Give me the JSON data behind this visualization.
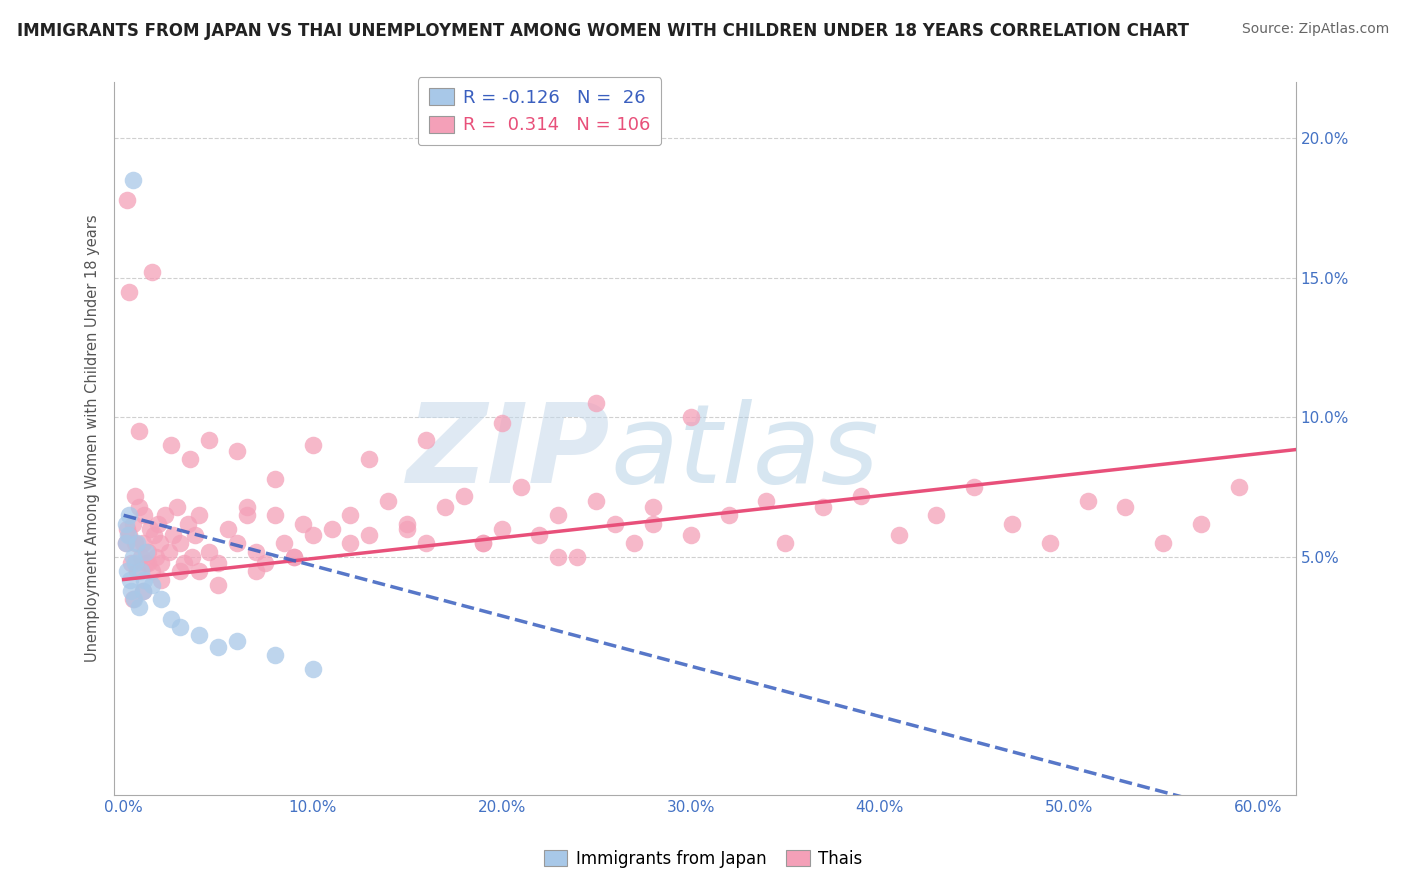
{
  "title": "IMMIGRANTS FROM JAPAN VS THAI UNEMPLOYMENT AMONG WOMEN WITH CHILDREN UNDER 18 YEARS CORRELATION CHART",
  "source": "Source: ZipAtlas.com",
  "xlabel_vals": [
    0,
    10,
    20,
    30,
    40,
    50,
    60
  ],
  "ylabel_vals": [
    5,
    10,
    15,
    20
  ],
  "ylabel_label": "Unemployment Among Women with Children Under 18 years",
  "xlim": [
    -0.5,
    62
  ],
  "ylim": [
    -3.5,
    22
  ],
  "japan_R": -0.126,
  "japan_N": 26,
  "thai_R": 0.314,
  "thai_N": 106,
  "japan_color": "#a8c8e8",
  "thai_color": "#f4a0b8",
  "japan_line_color": "#3a5fbf",
  "thai_line_color": "#e8507a",
  "japan_line_start_y": 6.5,
  "japan_line_slope": -0.18,
  "thai_line_start_y": 4.2,
  "thai_line_slope": 0.075,
  "japan_scatter_x": [
    0.1,
    0.15,
    0.2,
    0.25,
    0.3,
    0.35,
    0.4,
    0.5,
    0.55,
    0.6,
    0.7,
    0.8,
    0.9,
    1.0,
    1.1,
    1.2,
    1.5,
    2.0,
    2.5,
    3.0,
    4.0,
    5.0,
    6.0,
    8.0,
    10.0,
    0.5
  ],
  "japan_scatter_y": [
    5.5,
    6.2,
    4.5,
    5.8,
    6.5,
    4.2,
    3.8,
    5.0,
    3.5,
    4.8,
    5.5,
    3.2,
    4.5,
    3.8,
    4.2,
    5.2,
    4.0,
    3.5,
    2.8,
    2.5,
    2.2,
    1.8,
    2.0,
    1.5,
    1.0,
    18.5
  ],
  "thai_scatter_x": [
    0.1,
    0.2,
    0.3,
    0.4,
    0.5,
    0.6,
    0.7,
    0.8,
    0.9,
    1.0,
    1.1,
    1.2,
    1.3,
    1.4,
    1.5,
    1.6,
    1.7,
    1.8,
    1.9,
    2.0,
    2.2,
    2.4,
    2.6,
    2.8,
    3.0,
    3.2,
    3.4,
    3.6,
    3.8,
    4.0,
    4.5,
    5.0,
    5.5,
    6.0,
    6.5,
    7.0,
    7.5,
    8.0,
    8.5,
    9.0,
    9.5,
    10.0,
    11.0,
    12.0,
    13.0,
    14.0,
    15.0,
    16.0,
    17.0,
    18.0,
    19.0,
    20.0,
    21.0,
    22.0,
    23.0,
    24.0,
    25.0,
    26.0,
    27.0,
    28.0,
    30.0,
    32.0,
    34.0,
    35.0,
    37.0,
    39.0,
    41.0,
    43.0,
    45.0,
    47.0,
    49.0,
    51.0,
    53.0,
    55.0,
    57.0,
    59.0,
    0.3,
    0.8,
    1.5,
    2.5,
    3.5,
    4.5,
    6.0,
    8.0,
    10.0,
    13.0,
    16.0,
    20.0,
    25.0,
    30.0,
    0.5,
    1.0,
    2.0,
    3.0,
    5.0,
    7.0,
    9.0,
    12.0,
    15.0,
    19.0,
    23.0,
    28.0,
    0.2,
    0.6,
    1.3,
    4.0,
    6.5
  ],
  "thai_scatter_y": [
    5.5,
    6.0,
    5.8,
    4.8,
    6.2,
    5.5,
    4.5,
    6.8,
    5.0,
    5.5,
    6.5,
    4.8,
    5.2,
    6.0,
    4.5,
    5.8,
    5.0,
    6.2,
    5.5,
    4.8,
    6.5,
    5.2,
    5.8,
    6.8,
    5.5,
    4.8,
    6.2,
    5.0,
    5.8,
    6.5,
    5.2,
    4.8,
    6.0,
    5.5,
    6.8,
    5.2,
    4.8,
    6.5,
    5.5,
    5.0,
    6.2,
    5.8,
    6.0,
    6.5,
    5.8,
    7.0,
    6.2,
    5.5,
    6.8,
    7.2,
    5.5,
    6.0,
    7.5,
    5.8,
    6.5,
    5.0,
    7.0,
    6.2,
    5.5,
    6.8,
    5.8,
    6.5,
    7.0,
    5.5,
    6.8,
    7.2,
    5.8,
    6.5,
    7.5,
    6.2,
    5.5,
    7.0,
    6.8,
    5.5,
    6.2,
    7.5,
    14.5,
    9.5,
    15.2,
    9.0,
    8.5,
    9.2,
    8.8,
    7.8,
    9.0,
    8.5,
    9.2,
    9.8,
    10.5,
    10.0,
    3.5,
    3.8,
    4.2,
    4.5,
    4.0,
    4.5,
    5.0,
    5.5,
    6.0,
    5.5,
    5.0,
    6.2,
    17.8,
    7.2,
    4.8,
    4.5,
    6.5
  ],
  "watermark_zip": "ZIP",
  "watermark_atlas": "atlas",
  "background_color": "#ffffff",
  "grid_color": "#d0d0d0"
}
